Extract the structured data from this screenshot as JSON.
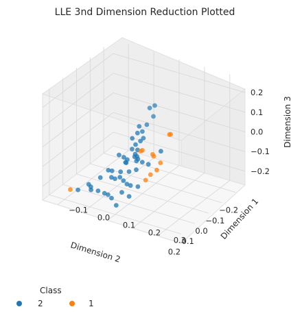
{
  "chart_data": {
    "type": "scatter",
    "title": "LLE 3nd Dimension Reduction Plotted",
    "xlabel": "Dimension 2",
    "ylabel": "Dimension 1",
    "zlabel": "Dimension 3",
    "xticks": [
      "−0.2",
      "−0.1",
      "0.0",
      "0.1",
      "0.2"
    ],
    "yticks": [
      "−0.1",
      "0.0",
      "0.1",
      "0.2",
      "0.3"
    ],
    "zticks": [
      "−0.2",
      "−0.1",
      "0.0",
      "0.1",
      "0.2"
    ],
    "xlim": [
      -0.27,
      0.25
    ],
    "ylim": [
      -0.16,
      0.36
    ],
    "zlim": [
      -0.27,
      0.27
    ],
    "grid": true,
    "legend_title": "Class",
    "legend_placement": "bottom-left",
    "series": [
      {
        "name": "2",
        "color": "#1f77b4",
        "points": [
          [
            -0.24,
            0.02,
            0.02
          ],
          [
            -0.24,
            0.0,
            0.0
          ],
          [
            -0.23,
            0.02,
            -0.03
          ],
          [
            -0.2,
            0.01,
            -0.06
          ],
          [
            -0.2,
            -0.02,
            -0.08
          ],
          [
            -0.15,
            0.0,
            -0.08
          ],
          [
            -0.13,
            0.03,
            -0.05
          ],
          [
            -0.13,
            -0.01,
            -0.1
          ],
          [
            -0.11,
            0.0,
            -0.14
          ],
          [
            -0.08,
            0.03,
            -0.09
          ],
          [
            -0.06,
            0.06,
            -0.05
          ],
          [
            -0.05,
            0.0,
            -0.15
          ],
          [
            -0.04,
            0.05,
            -0.11
          ],
          [
            -0.02,
            0.07,
            -0.07
          ],
          [
            -0.03,
            0.02,
            -0.16
          ],
          [
            0.0,
            0.04,
            -0.12
          ],
          [
            0.0,
            -0.02,
            -0.2
          ],
          [
            0.02,
            0.08,
            -0.08
          ],
          [
            0.03,
            0.03,
            -0.17
          ],
          [
            0.04,
            0.1,
            -0.06
          ],
          [
            0.05,
            0.06,
            -0.1
          ],
          [
            0.06,
            0.01,
            -0.19
          ],
          [
            0.08,
            0.09,
            -0.12
          ],
          [
            0.09,
            0.04,
            -0.17
          ],
          [
            0.1,
            0.13,
            -0.04
          ],
          [
            0.11,
            0.07,
            -0.14
          ],
          [
            0.12,
            0.14,
            -0.07
          ],
          [
            0.13,
            0.02,
            -0.23
          ],
          [
            0.14,
            0.1,
            -0.13
          ],
          [
            0.15,
            0.18,
            0.0
          ],
          [
            0.16,
            0.05,
            -0.21
          ],
          [
            0.17,
            0.13,
            -0.12
          ],
          [
            0.18,
            0.22,
            0.02
          ],
          [
            0.19,
            0.08,
            -0.2
          ],
          [
            0.2,
            0.16,
            -0.1
          ],
          [
            0.2,
            0.28,
            0.12
          ],
          [
            0.22,
            0.2,
            -0.08
          ],
          [
            0.06,
            -0.08,
            -0.26
          ],
          [
            0.08,
            -0.06,
            -0.27
          ],
          [
            0.1,
            -0.05,
            -0.24
          ],
          [
            0.12,
            -0.09,
            -0.26
          ],
          [
            -0.01,
            -0.04,
            -0.21
          ],
          [
            0.03,
            -0.05,
            -0.23
          ],
          [
            0.14,
            0.0,
            -0.22
          ],
          [
            0.17,
            0.11,
            -0.17
          ],
          [
            0.21,
            0.16,
            -0.15
          ],
          [
            0.23,
            0.12,
            -0.2
          ],
          [
            0.07,
            0.12,
            -0.05
          ],
          [
            -0.07,
            -0.03,
            -0.16
          ],
          [
            -0.1,
            0.05,
            -0.06
          ]
        ]
      },
      {
        "name": "1",
        "color": "#ff7f0e",
        "points": [
          [
            0.24,
            0.34,
            0.25
          ],
          [
            0.23,
            0.33,
            0.24
          ],
          [
            0.24,
            0.3,
            0.09
          ],
          [
            0.23,
            0.28,
            0.04
          ],
          [
            0.22,
            0.25,
            0.0
          ],
          [
            0.2,
            0.22,
            -0.05
          ],
          [
            0.14,
            0.22,
            0.04
          ],
          [
            0.13,
            0.21,
            0.04
          ],
          [
            0.05,
            0.12,
            -0.02
          ],
          [
            0.0,
            0.1,
            -0.05
          ],
          [
            0.12,
            -0.12,
            -0.27
          ]
        ]
      }
    ]
  }
}
